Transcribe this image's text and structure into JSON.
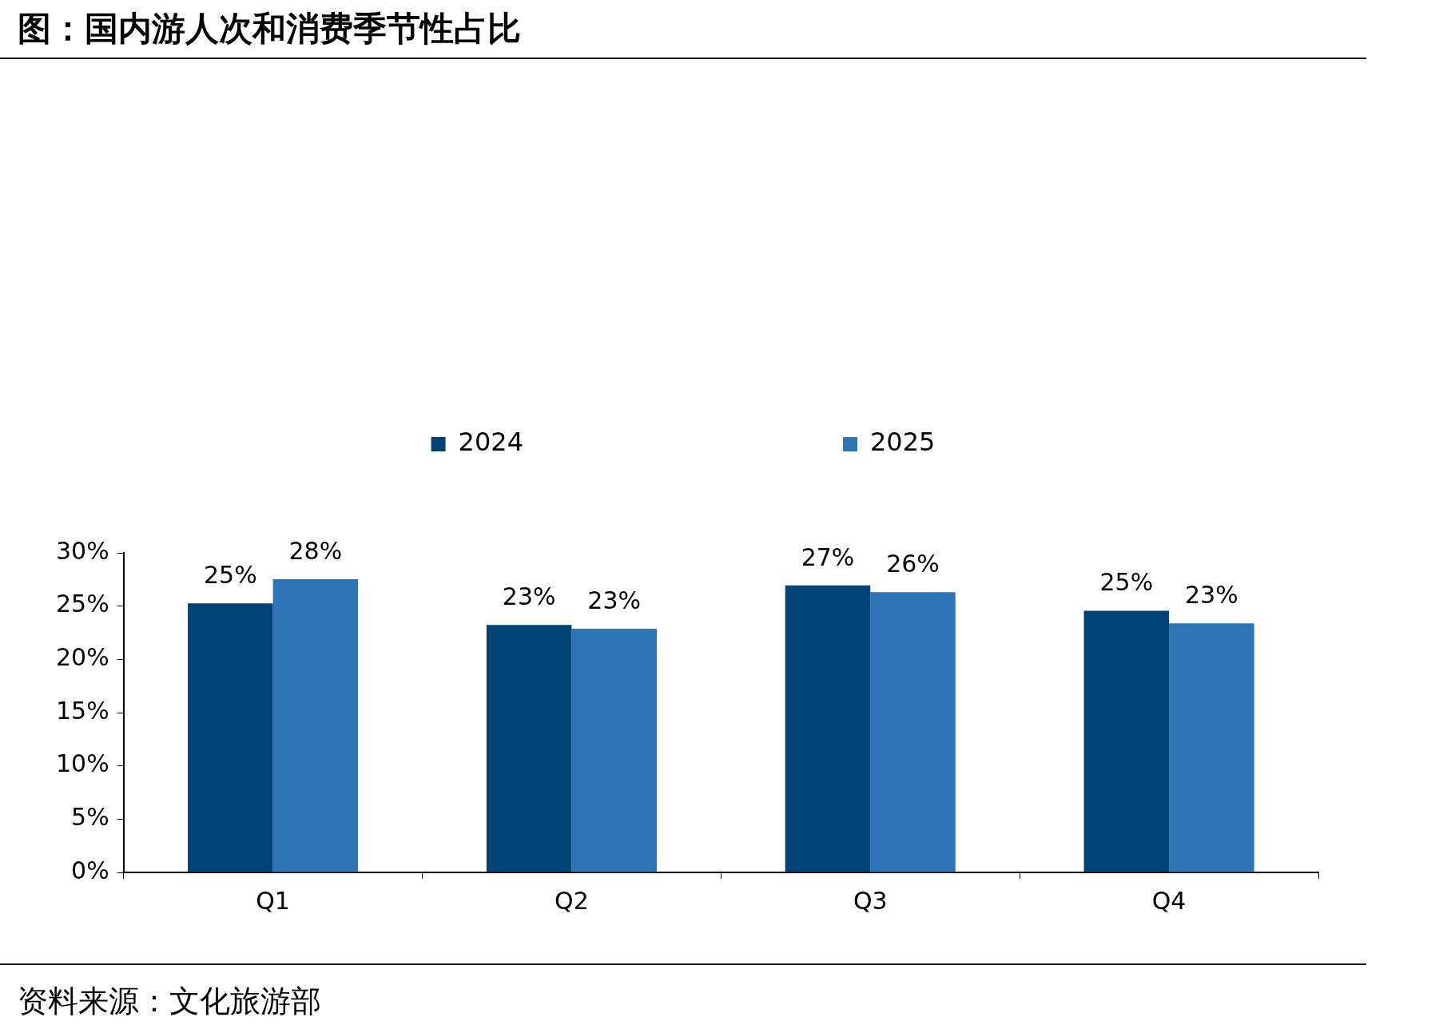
{
  "chart_data": {
    "type": "bar",
    "title": "图：国内游人次和消费季节性占比",
    "categories": [
      "Q1",
      "Q2",
      "Q3",
      "Q4"
    ],
    "series": [
      {
        "name": "2024",
        "color": "#034275",
        "values": [
          25.25,
          23.24,
          26.94,
          24.57
        ],
        "value_labels": [
          "25%",
          "23%",
          "27%",
          "25%"
        ]
      },
      {
        "name": "2025",
        "color": "#2e75b6",
        "values": [
          27.53,
          22.88,
          26.3,
          23.38
        ],
        "value_labels": [
          "28%",
          "23%",
          "26%",
          "23%"
        ]
      }
    ],
    "ylim": [
      0,
      30
    ],
    "yticks": [
      {
        "value": 0,
        "label": "0%"
      },
      {
        "value": 5,
        "label": "5%"
      },
      {
        "value": 10,
        "label": "10%"
      },
      {
        "value": 15,
        "label": "15%"
      },
      {
        "value": 20,
        "label": "20%"
      },
      {
        "value": 25,
        "label": "25%"
      },
      {
        "value": 30,
        "label": "30%"
      }
    ],
    "grid": false,
    "legend": "top",
    "annotations": [
      "资料来源：文化旅游部"
    ]
  }
}
